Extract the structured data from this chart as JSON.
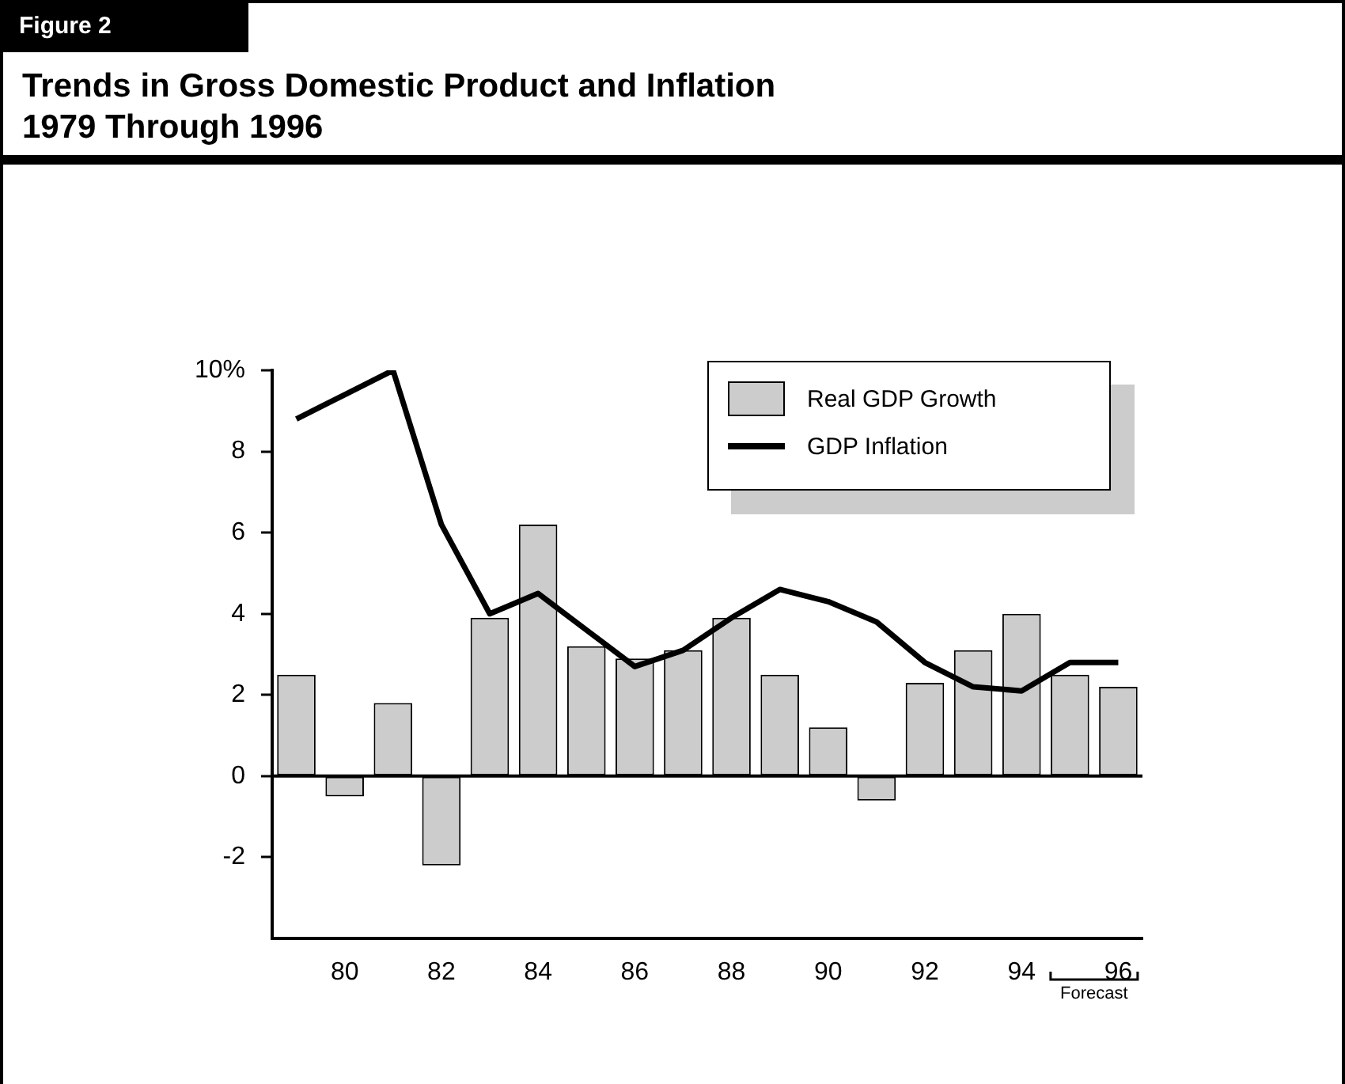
{
  "chart_data": {
    "type": "bar",
    "title": "Trends in Gross Domestic Product and Inflation\n1979 Through 1996",
    "annotations": [
      "Figure 2",
      "Forecast"
    ],
    "categories": [
      null,
      "80",
      null,
      "82",
      null,
      "84",
      null,
      "86",
      null,
      "88",
      null,
      "90",
      null,
      "92",
      null,
      "94",
      null,
      "96"
    ],
    "series": [
      {
        "name": "Real GDP Growth",
        "color": "#cccccc",
        "values": [
          2.5,
          -0.5,
          1.8,
          -2.2,
          3.9,
          6.2,
          3.2,
          2.9,
          3.1,
          3.9,
          2.5,
          1.2,
          -0.6,
          2.3,
          3.1,
          4.0,
          2.5,
          2.2
        ]
      },
      {
        "name": "GDP Inflation",
        "type": "line",
        "color": "#000000",
        "values": [
          8.8,
          9.4,
          10.0,
          6.2,
          4.0,
          4.5,
          3.6,
          2.7,
          3.1,
          3.9,
          4.6,
          4.3,
          3.8,
          2.8,
          2.2,
          2.1,
          2.8,
          2.8
        ]
      }
    ],
    "ylim": [
      -4,
      10
    ],
    "yticks": [
      -2,
      0,
      2,
      4,
      6,
      8,
      {
        "value": 10,
        "label": "10%"
      }
    ],
    "grid": false,
    "ref_lines": [
      {
        "axis": "y",
        "value": 0
      }
    ],
    "legend": "top right",
    "marker": "none"
  }
}
